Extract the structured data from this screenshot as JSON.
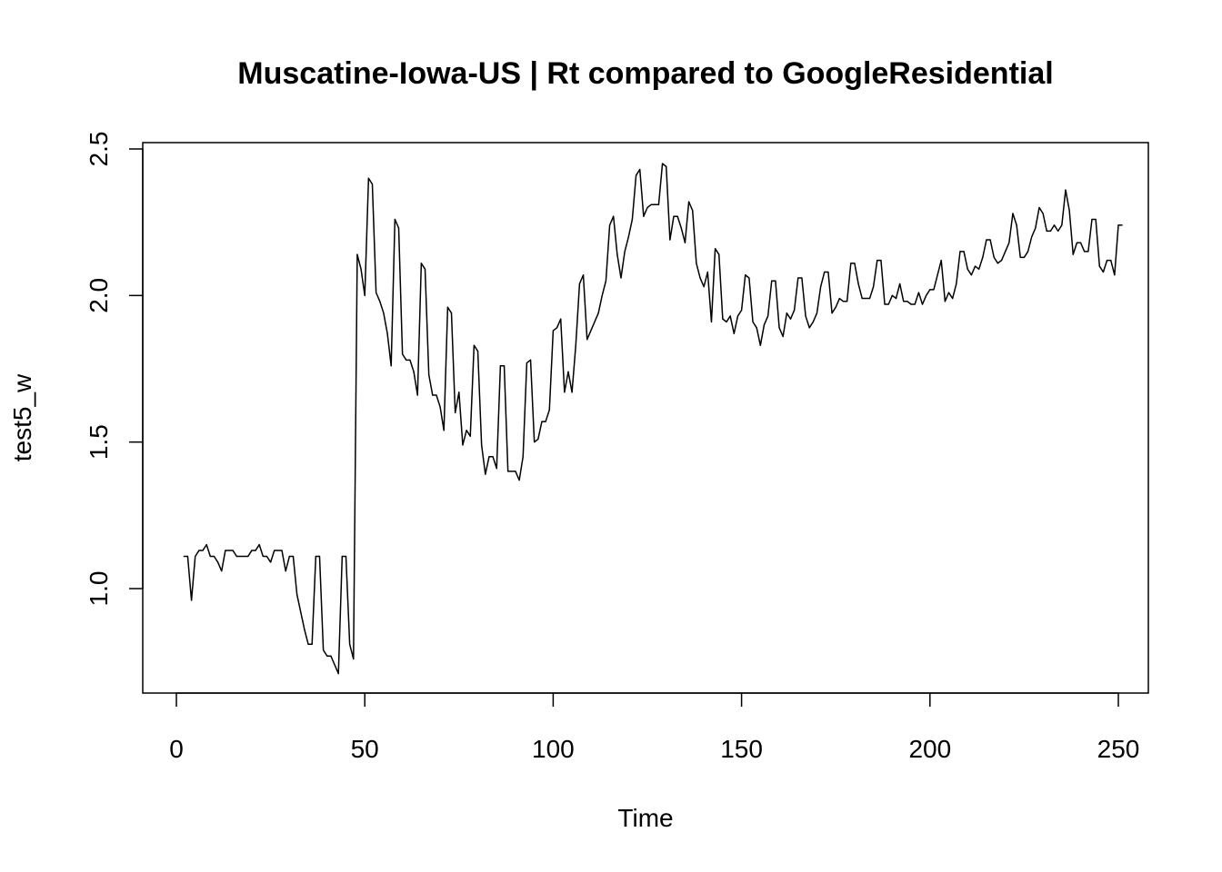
{
  "chart_data": {
    "type": "line",
    "title": "Muscatine-Iowa-US | Rt compared to GoogleResidential",
    "xlabel": "Time",
    "ylabel": "test5_w",
    "xlim": [
      0,
      250
    ],
    "ylim": [
      0.7,
      2.5
    ],
    "x_ticks": [
      0,
      50,
      100,
      150,
      200,
      250
    ],
    "x_tick_labels": [
      "0",
      "50",
      "100",
      "150",
      "200",
      "250"
    ],
    "y_ticks": [
      1.0,
      1.5,
      2.0,
      2.5
    ],
    "y_tick_labels": [
      "1.0",
      "1.5",
      "2.0",
      "2.5"
    ],
    "grid": false,
    "series": [
      {
        "x_start": 2,
        "values": [
          1.11,
          1.11,
          0.96,
          1.11,
          1.13,
          1.13,
          1.15,
          1.11,
          1.11,
          1.09,
          1.06,
          1.13,
          1.13,
          1.13,
          1.11,
          1.11,
          1.11,
          1.11,
          1.13,
          1.13,
          1.15,
          1.11,
          1.11,
          1.09,
          1.13,
          1.13,
          1.13,
          1.06,
          1.11,
          1.11,
          0.98,
          0.92,
          0.86,
          0.81,
          0.81,
          1.11,
          1.11,
          0.79,
          0.77,
          0.77,
          0.74,
          0.71,
          1.11,
          1.11,
          0.81,
          0.76,
          2.14,
          2.09,
          2.0,
          2.4,
          2.38,
          2.01,
          1.98,
          1.94,
          1.87,
          1.76,
          2.26,
          2.23,
          1.8,
          1.78,
          1.78,
          1.74,
          1.66,
          2.11,
          2.09,
          1.73,
          1.66,
          1.66,
          1.62,
          1.54,
          1.96,
          1.94,
          1.6,
          1.67,
          1.49,
          1.54,
          1.52,
          1.83,
          1.81,
          1.49,
          1.39,
          1.45,
          1.45,
          1.41,
          1.76,
          1.76,
          1.4,
          1.4,
          1.4,
          1.37,
          1.45,
          1.77,
          1.78,
          1.5,
          1.51,
          1.57,
          1.57,
          1.61,
          1.88,
          1.89,
          1.92,
          1.67,
          1.74,
          1.67,
          1.83,
          2.04,
          2.07,
          1.85,
          1.88,
          1.91,
          1.94,
          2.0,
          2.05,
          2.24,
          2.27,
          2.14,
          2.06,
          2.15,
          2.2,
          2.26,
          2.41,
          2.43,
          2.27,
          2.3,
          2.31,
          2.31,
          2.31,
          2.45,
          2.44,
          2.19,
          2.27,
          2.27,
          2.23,
          2.18,
          2.32,
          2.29,
          2.11,
          2.06,
          2.03,
          2.08,
          1.91,
          2.16,
          2.14,
          1.92,
          1.91,
          1.93,
          1.87,
          1.93,
          1.95,
          2.07,
          2.06,
          1.91,
          1.89,
          1.83,
          1.9,
          1.93,
          2.05,
          2.05,
          1.89,
          1.86,
          1.94,
          1.92,
          1.95,
          2.06,
          2.06,
          1.93,
          1.89,
          1.91,
          1.94,
          2.03,
          2.08,
          2.08,
          1.94,
          1.96,
          1.99,
          1.98,
          1.98,
          2.11,
          2.11,
          2.04,
          1.99,
          1.99,
          1.99,
          2.03,
          2.12,
          2.12,
          1.97,
          1.97,
          2.0,
          1.99,
          2.04,
          1.98,
          1.98,
          1.97,
          1.97,
          2.01,
          1.97,
          2.0,
          2.02,
          2.02,
          2.07,
          2.12,
          1.98,
          2.01,
          1.99,
          2.04,
          2.15,
          2.15,
          2.09,
          2.07,
          2.1,
          2.09,
          2.13,
          2.19,
          2.19,
          2.13,
          2.11,
          2.12,
          2.15,
          2.18,
          2.28,
          2.24,
          2.13,
          2.13,
          2.15,
          2.2,
          2.23,
          2.3,
          2.28,
          2.22,
          2.22,
          2.24,
          2.22,
          2.24,
          2.36,
          2.29,
          2.14,
          2.18,
          2.18,
          2.15,
          2.15,
          2.26,
          2.26,
          2.1,
          2.08,
          2.12,
          2.12,
          2.07,
          2.24,
          2.24
        ]
      }
    ],
    "colors": {
      "line": "#000000",
      "background": "#ffffff"
    }
  }
}
